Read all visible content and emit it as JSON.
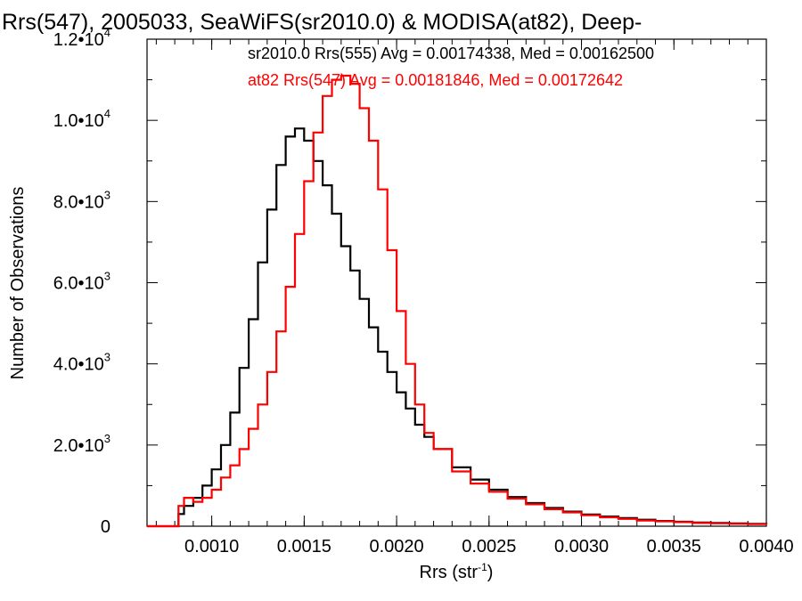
{
  "chart_data": {
    "type": "line",
    "title": "Rrs(547), 2005033, SeaWiFS(sr2010.0) & MODISA(at82), Deep-",
    "xlabel": "Rrs (str",
    "xlabel_sup": "-1",
    "xlabel_tail": ")",
    "ylabel": "Number of Observations",
    "xlim": [
      0.00065,
      0.004
    ],
    "ylim": [
      0,
      12000
    ],
    "x_ticks": [
      {
        "value": 0.001,
        "label": "0.0010"
      },
      {
        "value": 0.0015,
        "label": "0.0015"
      },
      {
        "value": 0.002,
        "label": "0.0020"
      },
      {
        "value": 0.0025,
        "label": "0.0025"
      },
      {
        "value": 0.003,
        "label": "0.0030"
      },
      {
        "value": 0.0035,
        "label": "0.0035"
      },
      {
        "value": 0.004,
        "label": "0.0040"
      }
    ],
    "y_ticks": [
      {
        "value": 0,
        "label": "0",
        "exp": ""
      },
      {
        "value": 2000,
        "label": "2.0•10",
        "exp": "3"
      },
      {
        "value": 4000,
        "label": "4.0•10",
        "exp": "3"
      },
      {
        "value": 6000,
        "label": "6.0•10",
        "exp": "3"
      },
      {
        "value": 8000,
        "label": "8.0•10",
        "exp": "3"
      },
      {
        "value": 10000,
        "label": "1.0•10",
        "exp": "4"
      },
      {
        "value": 12000,
        "label": "1.2•10",
        "exp": "4"
      }
    ],
    "series": [
      {
        "name": "sr2010.0 Rrs(555) Avg = 0.00174338, Med = 0.00162500",
        "color": "#000000",
        "x": [
          0.00065,
          0.0008,
          0.00082,
          0.00085,
          0.0009,
          0.00095,
          0.001,
          0.00105,
          0.0011,
          0.00115,
          0.0012,
          0.00125,
          0.0013,
          0.00135,
          0.0014,
          0.00145,
          0.0015,
          0.00155,
          0.0016,
          0.00165,
          0.0017,
          0.00175,
          0.0018,
          0.00185,
          0.0019,
          0.00195,
          0.002,
          0.00205,
          0.0021,
          0.00215,
          0.0022,
          0.0023,
          0.0024,
          0.0025,
          0.0026,
          0.0027,
          0.0028,
          0.0029,
          0.003,
          0.0031,
          0.0032,
          0.0033,
          0.0034,
          0.0035,
          0.0036,
          0.0037,
          0.0038,
          0.0039,
          0.004
        ],
        "y": [
          0,
          0,
          300,
          500,
          700,
          1000,
          1400,
          2000,
          2800,
          3900,
          5100,
          6500,
          7800,
          8900,
          9600,
          9800,
          9500,
          9000,
          8400,
          7700,
          6900,
          6300,
          5600,
          4900,
          4300,
          3800,
          3300,
          2900,
          2500,
          2200,
          1900,
          1450,
          1150,
          900,
          720,
          570,
          450,
          360,
          290,
          240,
          200,
          160,
          130,
          110,
          90,
          80,
          70,
          60,
          50
        ]
      },
      {
        "name": "at82 Rrs(547) Avg = 0.00181846, Med = 0.00172642",
        "color": "#ff0000",
        "x": [
          0.00065,
          0.0008,
          0.00082,
          0.00085,
          0.0009,
          0.00095,
          0.001,
          0.00105,
          0.0011,
          0.00115,
          0.0012,
          0.00125,
          0.0013,
          0.00135,
          0.0014,
          0.00145,
          0.0015,
          0.00155,
          0.0016,
          0.00165,
          0.0017,
          0.00175,
          0.0018,
          0.00185,
          0.0019,
          0.00195,
          0.002,
          0.00205,
          0.0021,
          0.00215,
          0.0022,
          0.0023,
          0.0024,
          0.0025,
          0.0026,
          0.0027,
          0.0028,
          0.0029,
          0.003,
          0.0031,
          0.0032,
          0.0033,
          0.0034,
          0.0035,
          0.0036,
          0.0037,
          0.0038,
          0.0039,
          0.004
        ],
        "y": [
          0,
          0,
          500,
          700,
          600,
          700,
          900,
          1200,
          1500,
          1900,
          2400,
          3000,
          3800,
          4800,
          5900,
          7200,
          8500,
          9700,
          10600,
          11000,
          11100,
          10900,
          10300,
          9500,
          8300,
          6800,
          5300,
          4000,
          3000,
          2300,
          1900,
          1350,
          1050,
          850,
          680,
          540,
          420,
          340,
          270,
          220,
          180,
          140,
          120,
          100,
          80,
          70,
          60,
          50,
          40
        ]
      }
    ]
  }
}
